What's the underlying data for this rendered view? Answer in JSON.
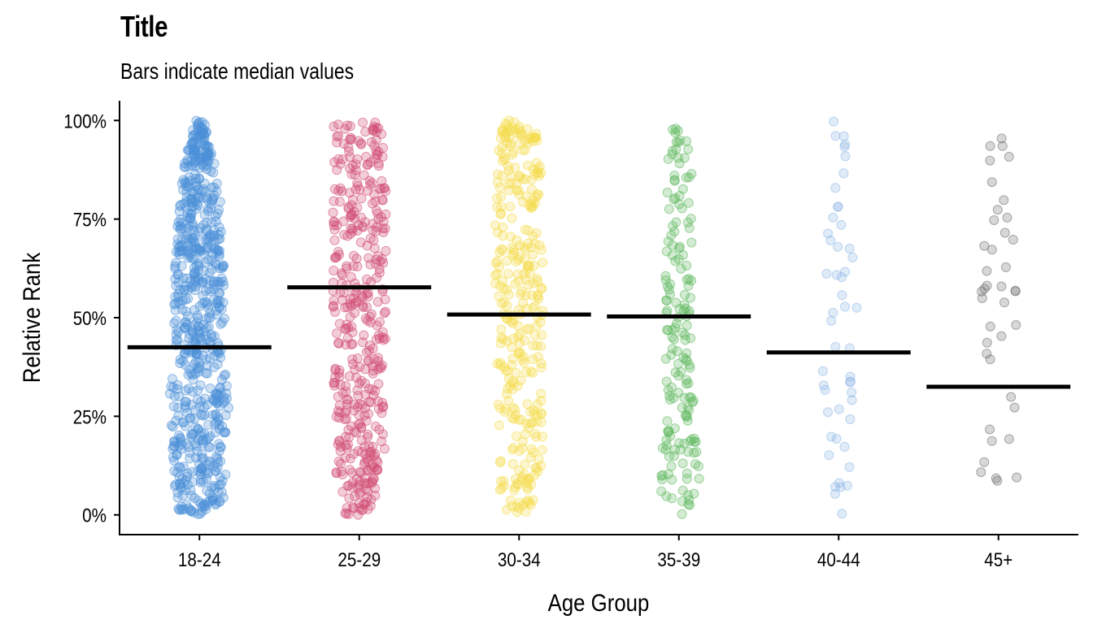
{
  "chart_data": {
    "type": "scatter",
    "title": "Title",
    "subtitle": "Bars indicate median values",
    "xlabel": "Age Group",
    "ylabel": "Relative Rank",
    "ylim": [
      -0.05,
      1.05
    ],
    "y_ticks": [
      0,
      0.25,
      0.5,
      0.75,
      1.0
    ],
    "y_tick_labels": [
      "0%",
      "25%",
      "50%",
      "75%",
      "100%"
    ],
    "grid": false,
    "legend": "none",
    "categories": [
      "18-24",
      "25-29",
      "30-34",
      "35-39",
      "40-44",
      "45+"
    ],
    "series": [
      {
        "category": "18-24",
        "color": "#4A90D9",
        "point_count": 700,
        "median": 0.425,
        "profile": [
          [
            0.0,
            0.14
          ],
          [
            0.1,
            0.17
          ],
          [
            0.2,
            0.17
          ],
          [
            0.3,
            0.19
          ],
          [
            0.4,
            0.15
          ],
          [
            0.5,
            0.16
          ],
          [
            0.6,
            0.16
          ],
          [
            0.7,
            0.14
          ],
          [
            0.8,
            0.13
          ],
          [
            0.9,
            0.09
          ],
          [
            1.0,
            0.03
          ]
        ]
      },
      {
        "category": "25-29",
        "color": "#D14D72",
        "point_count": 420,
        "median": 0.577,
        "profile": [
          [
            0.0,
            0.09
          ],
          [
            0.08,
            0.11
          ],
          [
            0.12,
            0.16
          ],
          [
            0.9,
            0.17
          ],
          [
            1.0,
            0.16
          ]
        ]
      },
      {
        "category": "30-34",
        "color": "#F5DC4A",
        "point_count": 330,
        "median": 0.508,
        "profile": [
          [
            0.0,
            0.09
          ],
          [
            0.08,
            0.13
          ],
          [
            0.15,
            0.15
          ],
          [
            0.85,
            0.15
          ],
          [
            0.95,
            0.12
          ],
          [
            1.0,
            0.09
          ]
        ]
      },
      {
        "category": "35-39",
        "color": "#5CB85C",
        "point_count": 170,
        "median": 0.503,
        "profile": [
          [
            0.0,
            0.06
          ],
          [
            0.1,
            0.15
          ],
          [
            0.2,
            0.1
          ],
          [
            0.5,
            0.08
          ],
          [
            0.8,
            0.09
          ],
          [
            1.0,
            0.06
          ]
        ]
      },
      {
        "category": "40-44",
        "color": "#8FB8E6",
        "point_count": 50,
        "median": 0.412,
        "profile": [
          [
            0.0,
            0.06
          ],
          [
            0.3,
            0.1
          ],
          [
            0.6,
            0.12
          ],
          [
            0.8,
            0.05
          ],
          [
            1.0,
            0.05
          ]
        ]
      },
      {
        "category": "45+",
        "color": "#6E6E6E",
        "point_count": 40,
        "median": 0.325,
        "profile": [
          [
            0.0,
            0.12
          ],
          [
            0.5,
            0.12
          ],
          [
            1.0,
            0.06
          ]
        ]
      }
    ]
  }
}
